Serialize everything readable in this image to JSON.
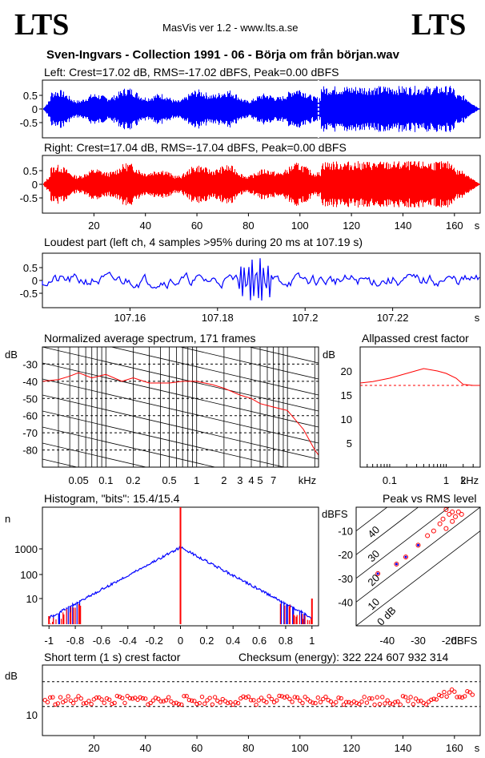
{
  "header": {
    "logo_left": "LTS",
    "logo_right": "LTS",
    "app": "MasVis ver 1.2 - www.lts.a.se",
    "file_title": "Sven-Ingvars - Collection 1991 - 06 - Börja om från början.wav"
  },
  "colors": {
    "left": "#0000ff",
    "right": "#ff0000"
  },
  "panels": {
    "left_title": "Left: Crest=17.02 dB, RMS=-17.02 dBFS, Peak=0.00 dBFS",
    "right_title": "Right: Crest=17.04 dB, RMS=-17.04 dBFS, Peak=0.00 dBFS",
    "loudest_title": "Loudest part (left  ch, 4 samples >95% during 20 ms at 107.19 s)",
    "spectrum_title": "Normalized average spectrum, 171 frames",
    "allpass_title": "Allpassed crest factor",
    "histogram_title": "Histogram, \"bits\": 15.4/15.4",
    "peakrms_title": "Peak vs RMS level",
    "shortterm_title": "Short term (1 s) crest factor",
    "checksum": "Checksum (energy):   322 224 607 932 314"
  },
  "chart_data": [
    {
      "type": "line",
      "name": "waveform-left",
      "x_ticks": [
        "20",
        "40",
        "60",
        "80",
        "100",
        "120",
        "140",
        "160"
      ],
      "x_unit": "s",
      "y_ticks": [
        "0.5",
        "0",
        "-0.5"
      ],
      "ylim": [
        -1,
        1
      ],
      "xlim": [
        0,
        170
      ],
      "marker_x": 107.19
    },
    {
      "type": "line",
      "name": "waveform-right",
      "x_ticks": [
        "20",
        "40",
        "60",
        "80",
        "100",
        "120",
        "140",
        "160"
      ],
      "x_unit": "s",
      "y_ticks": [
        "0.5",
        "0",
        "-0.5"
      ],
      "ylim": [
        -1,
        1
      ],
      "xlim": [
        0,
        170
      ]
    },
    {
      "type": "line",
      "name": "loudest-part",
      "x_ticks": [
        "107.16",
        "107.18",
        "107.2",
        "107.22"
      ],
      "x_unit": "s",
      "y_ticks": [
        "0.5",
        "0",
        "-0.5"
      ],
      "xlim": [
        107.14,
        107.24
      ],
      "ylim": [
        -1,
        1
      ]
    },
    {
      "type": "line",
      "name": "spectrum",
      "y_label": "dB",
      "x_unit": "kHz",
      "y_ticks": [
        "-30",
        "-40",
        "-50",
        "-60",
        "-70",
        "-80"
      ],
      "x_ticks": [
        "0.05",
        "0.1",
        "0.2",
        "0.5",
        "1",
        "2",
        "3",
        "4",
        "5",
        "7"
      ],
      "xlim": [
        0.02,
        22
      ],
      "ylim": [
        -90,
        -20
      ],
      "x": [
        0.02,
        0.03,
        0.04,
        0.05,
        0.07,
        0.1,
        0.15,
        0.2,
        0.3,
        0.5,
        0.7,
        1,
        1.5,
        2,
        3,
        4,
        5,
        7,
        10,
        15,
        20,
        22
      ],
      "y": [
        -40,
        -39,
        -37,
        -35,
        -38,
        -36,
        -40,
        -38,
        -41,
        -41,
        -40,
        -40,
        -42,
        -44,
        -48,
        -50,
        -53,
        -55,
        -57,
        -68,
        -80,
        -83
      ]
    },
    {
      "type": "line",
      "name": "allpass-crest",
      "y_label": "dB",
      "x_unit": "kHz",
      "y_ticks": [
        "20",
        "15",
        "10",
        "5"
      ],
      "x_ticks": [
        "0.1",
        "1",
        "2"
      ],
      "ylim": [
        0,
        25
      ],
      "xlim": [
        0.03,
        4
      ],
      "reference": 17,
      "x": [
        0.03,
        0.05,
        0.1,
        0.2,
        0.4,
        0.7,
        1,
        1.5,
        2,
        3,
        4
      ],
      "y": [
        17.5,
        17.8,
        18.5,
        19.5,
        20.5,
        20.0,
        19.5,
        18.5,
        17.2,
        17.0,
        17.0
      ]
    },
    {
      "type": "bar",
      "name": "histogram",
      "y_label": "n",
      "x_ticks": [
        "-1",
        "-0.8",
        "-0.6",
        "-0.4",
        "-0.2",
        "0",
        "0.2",
        "0.4",
        "0.6",
        "0.8",
        "1"
      ],
      "y_ticks": [
        "1000",
        "100",
        "10"
      ],
      "xlim": [
        -1.05,
        1.05
      ]
    },
    {
      "type": "scatter",
      "name": "peak-vs-rms",
      "y_label": "dBFS",
      "x_unit": "dBFS",
      "y_ticks": [
        "-10",
        "-20",
        "-30",
        "-40"
      ],
      "x_ticks": [
        "-40",
        "-30",
        "-20"
      ],
      "diagonal_labels": [
        "40",
        "30",
        "20",
        "10",
        "0 dB"
      ],
      "xlim": [
        -50,
        -10
      ],
      "ylim": [
        -50,
        0
      ],
      "points": [
        [
          -21,
          -1
        ],
        [
          -19,
          -2
        ],
        [
          -20,
          -3
        ],
        [
          -18,
          -4
        ],
        [
          -17,
          -2
        ],
        [
          -22,
          -5
        ],
        [
          -16,
          -3
        ],
        [
          -19,
          -6
        ],
        [
          -23,
          -7
        ],
        [
          -21,
          -9
        ],
        [
          -25,
          -10
        ],
        [
          -27,
          -12
        ],
        [
          -30,
          -16
        ],
        [
          -34,
          -21
        ],
        [
          -37,
          -24
        ],
        [
          -43,
          -28
        ]
      ]
    },
    {
      "type": "scatter",
      "name": "short-term-crest",
      "y_label": "dB",
      "x_unit": "s",
      "y_ticks": [
        "10"
      ],
      "x_ticks": [
        "20",
        "40",
        "60",
        "80",
        "100",
        "120",
        "140",
        "160"
      ],
      "xlim": [
        0,
        170
      ],
      "ylim": [
        5,
        22
      ],
      "ref_lines": [
        12,
        18
      ]
    }
  ]
}
